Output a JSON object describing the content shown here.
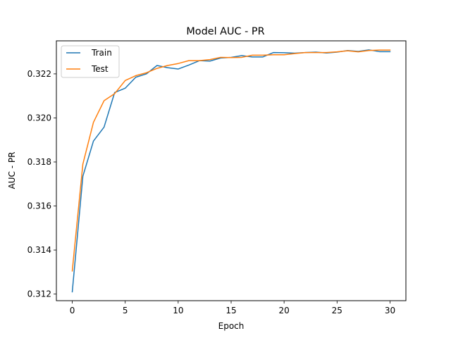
{
  "chart_data": {
    "type": "line",
    "title": "Model AUC - PR",
    "xlabel": "Epoch",
    "ylabel": "AUC - PR",
    "xlim": [
      -1.5,
      31.5
    ],
    "ylim": [
      0.3117,
      0.3235
    ],
    "xticks": [
      0,
      5,
      10,
      15,
      20,
      25,
      30
    ],
    "yticks": [
      0.312,
      0.314,
      0.316,
      0.318,
      0.32,
      0.322
    ],
    "ytick_labels": [
      "0.312",
      "0.314",
      "0.316",
      "0.318",
      "0.320",
      "0.322"
    ],
    "grid": false,
    "legend_position": "upper-left",
    "x": [
      0,
      1,
      2,
      3,
      4,
      5,
      6,
      7,
      8,
      9,
      10,
      11,
      12,
      13,
      14,
      15,
      16,
      17,
      18,
      19,
      20,
      21,
      22,
      23,
      24,
      25,
      26,
      27,
      28,
      29,
      30
    ],
    "series": [
      {
        "name": "Train",
        "color": "#1f77b4",
        "values": [
          0.3121,
          0.31735,
          0.31895,
          0.31958,
          0.32115,
          0.32135,
          0.32185,
          0.322,
          0.32238,
          0.32228,
          0.32222,
          0.3224,
          0.3226,
          0.32258,
          0.32272,
          0.32275,
          0.32283,
          0.32277,
          0.32277,
          0.32297,
          0.32296,
          0.32294,
          0.32297,
          0.32299,
          0.32295,
          0.32299,
          0.32306,
          0.32302,
          0.32309,
          0.32301,
          0.32301
        ]
      },
      {
        "name": "Test",
        "color": "#ff7f0e",
        "values": [
          0.31305,
          0.3179,
          0.3198,
          0.32078,
          0.3211,
          0.3217,
          0.32192,
          0.32205,
          0.32225,
          0.32238,
          0.32247,
          0.3226,
          0.3226,
          0.32265,
          0.32275,
          0.32274,
          0.32275,
          0.32285,
          0.32285,
          0.32287,
          0.32287,
          0.32292,
          0.32297,
          0.32297,
          0.32297,
          0.323,
          0.32305,
          0.323,
          0.32306,
          0.32308,
          0.32308
        ]
      }
    ]
  }
}
